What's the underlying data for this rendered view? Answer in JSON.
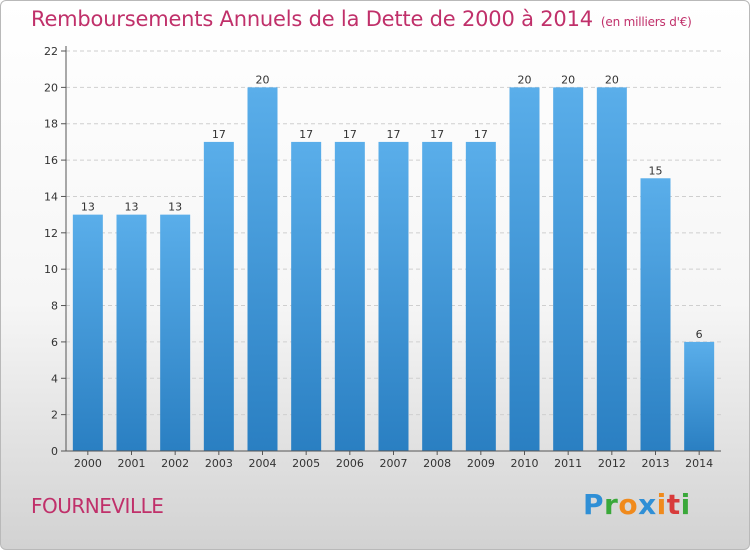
{
  "title": "Remboursements Annuels de la Dette de 2000 à 2014",
  "unit_note": "(en milliers d'€)",
  "location": "FOURNEVILLE",
  "logo": {
    "text": "Proxiti",
    "letters": [
      "P",
      "r",
      "o",
      "x",
      "i",
      "t",
      "i"
    ],
    "colors": [
      "#2f8fd6",
      "#3aa83a",
      "#f08a1c",
      "#2f8fd6",
      "#f08a1c",
      "#d83b3b",
      "#3aa83a"
    ]
  },
  "colors": {
    "title": "#c0306a",
    "bar_top": "#5aaeea",
    "bar_bottom": "#2a7fc2",
    "axis": "#555555",
    "grid": "#cfcfcf"
  },
  "chart_data": {
    "type": "bar",
    "categories": [
      "2000",
      "2001",
      "2002",
      "2003",
      "2004",
      "2005",
      "2006",
      "2007",
      "2008",
      "2009",
      "2010",
      "2011",
      "2012",
      "2013",
      "2014"
    ],
    "values": [
      13,
      13,
      13,
      17,
      20,
      17,
      17,
      17,
      17,
      17,
      20,
      20,
      20,
      15,
      6
    ],
    "ylim": [
      0,
      22
    ],
    "yticks": [
      0,
      2,
      4,
      6,
      8,
      10,
      12,
      14,
      16,
      18,
      20,
      22
    ],
    "grid": true,
    "data_labels": true
  }
}
